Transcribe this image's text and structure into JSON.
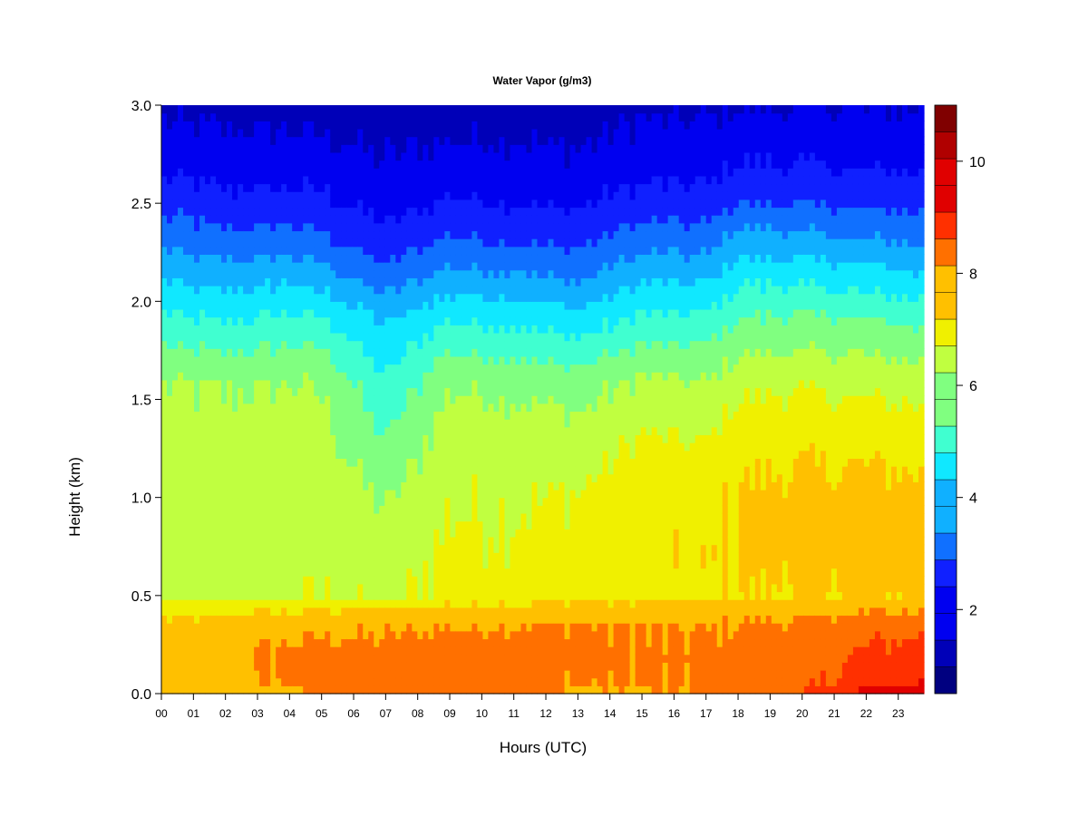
{
  "chart_data": {
    "type": "heatmap",
    "title": "Water Vapor (g/m3)",
    "xlabel": "Hours (UTC)",
    "ylabel": "Height (km)",
    "xlim": [
      0,
      23.8
    ],
    "ylim": [
      0,
      3.0
    ],
    "x_ticks": [
      0,
      1,
      2,
      3,
      4,
      5,
      6,
      7,
      8,
      9,
      10,
      11,
      12,
      13,
      14,
      15,
      16,
      17,
      18,
      19,
      20,
      21,
      22,
      23
    ],
    "x_tick_labels": [
      "00",
      "01",
      "02",
      "03",
      "04",
      "05",
      "06",
      "07",
      "08",
      "09",
      "10",
      "11",
      "12",
      "13",
      "14",
      "15",
      "16",
      "17",
      "18",
      "19",
      "20",
      "21",
      "22",
      "23"
    ],
    "y_ticks": [
      0.0,
      0.5,
      1.0,
      1.5,
      2.0,
      2.5,
      3.0
    ],
    "y_tick_labels": [
      "0.0",
      "0.5",
      "1.0",
      "1.5",
      "2.0",
      "2.5",
      "3.0"
    ],
    "colorbar": {
      "range": [
        0.5,
        11.0
      ],
      "levels": [
        0.5,
        1.25,
        2.0,
        2.75,
        3.5,
        4.25,
        5.0,
        5.75,
        6.5,
        7.25,
        8.0,
        8.75,
        9.5,
        10.25,
        11.0
      ],
      "ticks": [
        2,
        4,
        6,
        8,
        10
      ],
      "tick_labels": [
        "2",
        "4",
        "6",
        "8",
        "10"
      ],
      "colors": [
        "#000080",
        "#0000b8",
        "#0000f0",
        "#1020ff",
        "#1070ff",
        "#10b0ff",
        "#10e8ff",
        "#40ffd0",
        "#80ff80",
        "#c0ff40",
        "#f0f000",
        "#ffc000",
        "#ff7000",
        "#ff3000",
        "#e00000",
        "#b00000",
        "#800000"
      ]
    },
    "profile_heights_km": [
      0.0,
      0.05,
      0.2,
      0.35,
      0.45,
      0.5,
      0.7,
      1.0,
      1.3,
      1.6,
      1.9,
      2.1,
      2.3,
      2.5,
      2.7,
      2.9,
      3.0
    ],
    "hourly_profiles": [
      {
        "hour": 0,
        "values": [
          8.5,
          8.3,
          8.4,
          8.1,
          7.6,
          7.0,
          6.9,
          6.9,
          6.8,
          6.5,
          5.2,
          4.3,
          3.4,
          2.5,
          1.8,
          1.3,
          1.1
        ]
      },
      {
        "hour": 2,
        "values": [
          8.4,
          8.4,
          8.6,
          8.3,
          7.6,
          7.0,
          6.9,
          6.9,
          6.8,
          6.4,
          5.0,
          4.0,
          3.0,
          2.2,
          1.6,
          1.2,
          1.0
        ]
      },
      {
        "hour": 4,
        "values": [
          8.6,
          8.8,
          8.9,
          8.5,
          7.8,
          7.1,
          7.0,
          7.0,
          6.9,
          6.5,
          5.2,
          4.2,
          3.2,
          2.3,
          1.6,
          1.2,
          1.0
        ]
      },
      {
        "hour": 5,
        "values": [
          8.8,
          9.0,
          9.0,
          8.6,
          7.9,
          7.2,
          7.1,
          7.0,
          6.8,
          6.4,
          5.1,
          4.0,
          3.0,
          2.2,
          1.6,
          1.1,
          0.9
        ]
      },
      {
        "hour": 7,
        "values": [
          8.9,
          9.1,
          9.0,
          8.6,
          7.9,
          7.1,
          6.9,
          6.4,
          5.8,
          5.0,
          4.2,
          3.2,
          2.2,
          1.7,
          1.3,
          1.0,
          0.9
        ]
      },
      {
        "hour": 9,
        "values": [
          8.8,
          9.0,
          9.1,
          8.7,
          8.1,
          7.4,
          7.4,
          7.2,
          6.9,
          6.4,
          5.0,
          3.9,
          2.9,
          2.1,
          1.5,
          1.1,
          0.9
        ]
      },
      {
        "hour": 11,
        "values": [
          8.9,
          9.1,
          9.1,
          8.8,
          8.1,
          7.5,
          7.4,
          7.2,
          6.9,
          6.3,
          4.9,
          3.8,
          2.8,
          2.0,
          1.5,
          1.1,
          0.9
        ]
      },
      {
        "hour": 13,
        "values": [
          8.6,
          8.8,
          9.0,
          8.8,
          8.2,
          7.6,
          7.6,
          7.3,
          6.8,
          6.1,
          4.6,
          3.5,
          2.6,
          1.9,
          1.4,
          1.0,
          0.9
        ]
      },
      {
        "hour": 15,
        "values": [
          8.6,
          8.8,
          8.8,
          8.7,
          8.2,
          7.7,
          7.8,
          7.8,
          7.3,
          6.6,
          5.2,
          4.2,
          3.2,
          2.3,
          1.7,
          1.3,
          1.1
        ]
      },
      {
        "hour": 17,
        "values": [
          8.7,
          8.8,
          8.9,
          8.7,
          8.2,
          7.8,
          7.9,
          7.8,
          7.2,
          6.5,
          5.2,
          4.2,
          3.2,
          2.3,
          1.7,
          1.3,
          1.1
        ]
      },
      {
        "hour": 18,
        "values": [
          9.2,
          9.1,
          9.0,
          8.8,
          8.3,
          8.0,
          8.1,
          8.1,
          7.7,
          7.0,
          5.8,
          4.9,
          3.9,
          2.8,
          2.0,
          1.5,
          1.2
        ]
      },
      {
        "hour": 20,
        "values": [
          9.4,
          9.3,
          9.1,
          8.9,
          8.4,
          8.0,
          8.2,
          8.2,
          7.8,
          7.1,
          5.9,
          4.9,
          3.8,
          2.7,
          2.0,
          1.5,
          1.2
        ]
      },
      {
        "hour": 22,
        "values": [
          10.5,
          9.9,
          9.6,
          9.2,
          8.5,
          8.1,
          8.3,
          8.2,
          7.8,
          7.0,
          5.8,
          4.7,
          3.6,
          2.6,
          1.9,
          1.4,
          1.2
        ]
      },
      {
        "hour": 23.8,
        "values": [
          10.8,
          10.3,
          9.8,
          9.3,
          8.5,
          8.1,
          8.4,
          8.2,
          7.7,
          6.9,
          5.6,
          4.5,
          3.4,
          2.5,
          1.8,
          1.4,
          1.2
        ]
      }
    ]
  }
}
